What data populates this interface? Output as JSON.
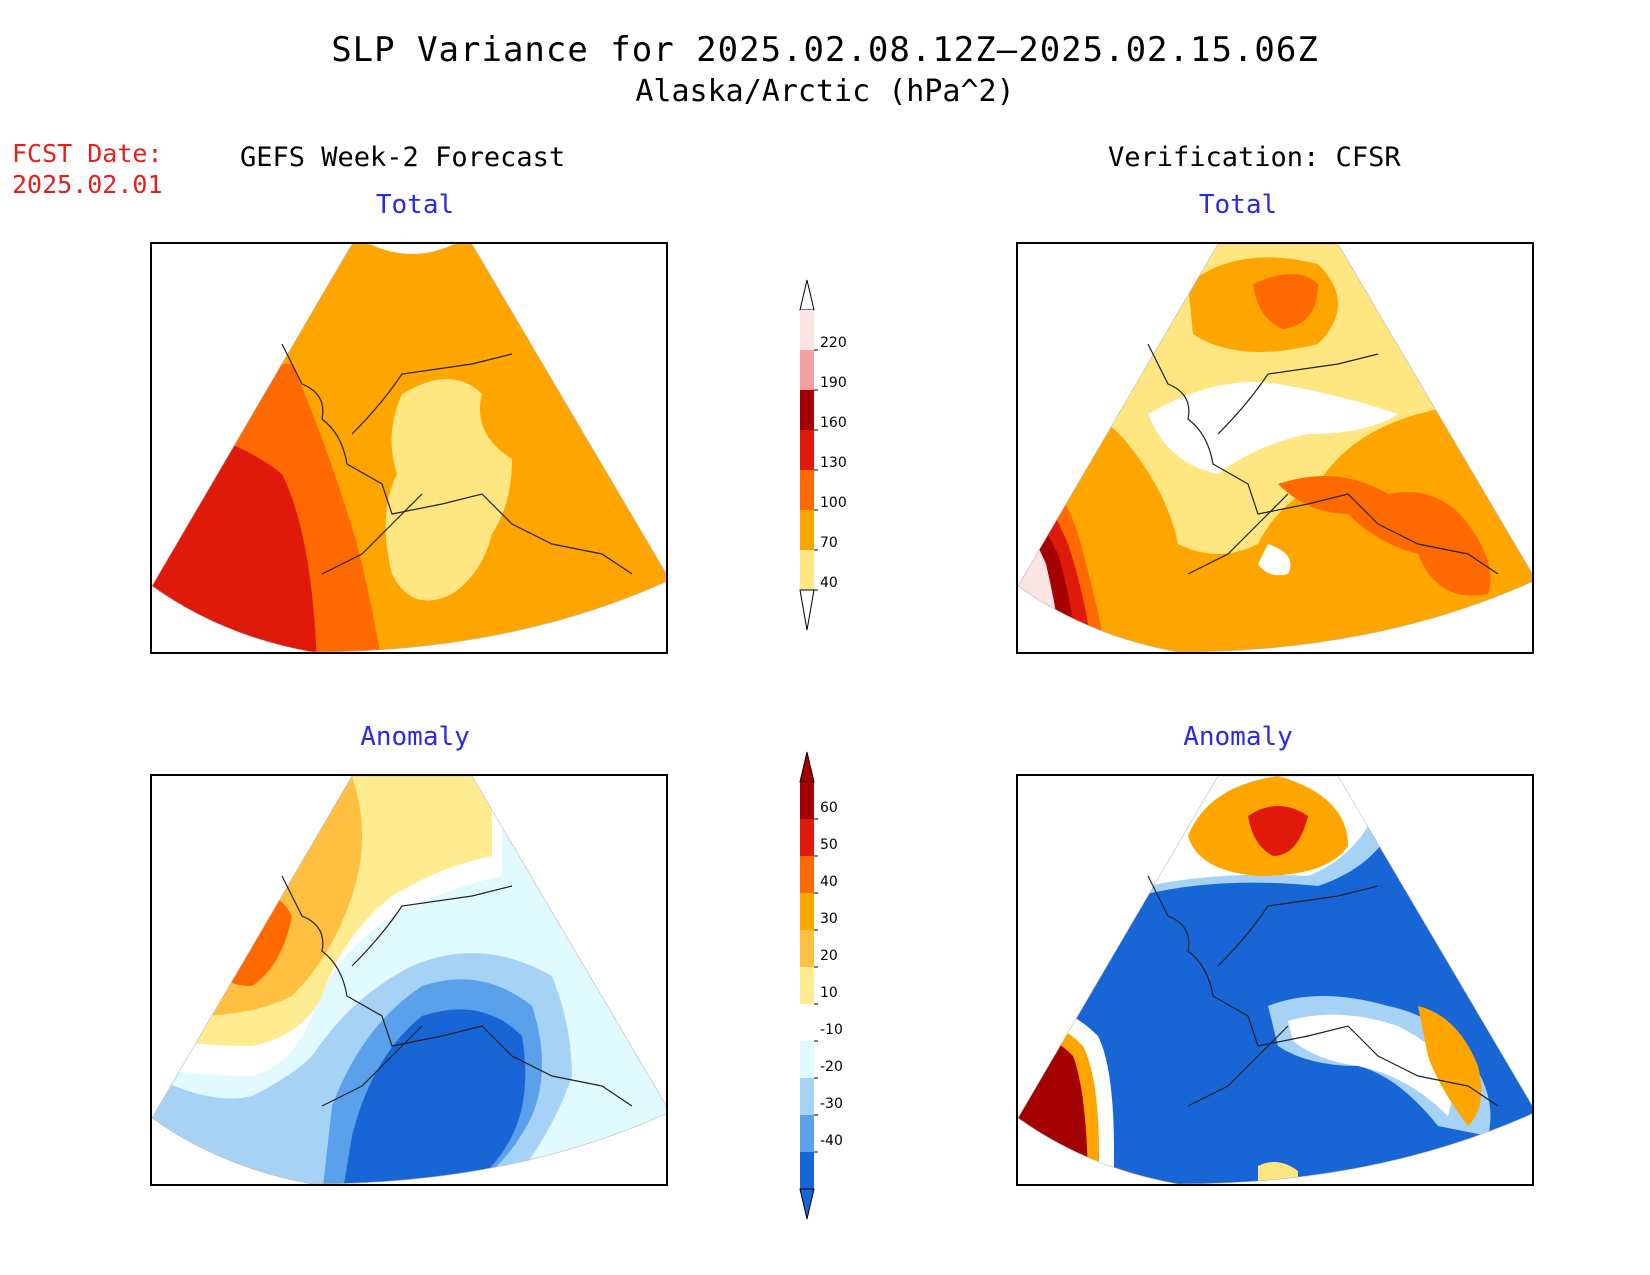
{
  "title": {
    "line1": "SLP Variance for 2025.02.08.12Z–2025.02.15.06Z",
    "line2": "Alaska/Arctic (hPa^2)"
  },
  "forecast_date": {
    "label": "FCST Date:",
    "value": "2025.02.01"
  },
  "columns": {
    "left_header": "GEFS Week-2 Forecast",
    "right_header": "Verification: CFSR"
  },
  "panels": {
    "forecast_total": {
      "subtitle": "Total"
    },
    "forecast_anomaly": {
      "subtitle": "Anomaly"
    },
    "verification_total": {
      "subtitle": "Total"
    },
    "verification_anomaly": {
      "subtitle": "Anomaly"
    }
  },
  "colorbars": {
    "total": {
      "ticks": [
        "220",
        "190",
        "160",
        "130",
        "100",
        "70",
        "40"
      ],
      "colors": [
        "#fbe4e4",
        "#f2a0a0",
        "#a40000",
        "#e01a0a",
        "#ff6a00",
        "#ffa500",
        "#ffe680"
      ]
    },
    "anomaly": {
      "ticks": [
        "60",
        "50",
        "40",
        "30",
        "20",
        "10",
        "-10",
        "-20",
        "-30",
        "-40"
      ],
      "colors": [
        "#a40000",
        "#e01a0a",
        "#ff6a00",
        "#ffa500",
        "#ffbf40",
        "#ffec90",
        "#ffffff",
        "#e0faff",
        "#a6d2f5",
        "#5aa0eb",
        "#1866d6"
      ]
    }
  }
}
